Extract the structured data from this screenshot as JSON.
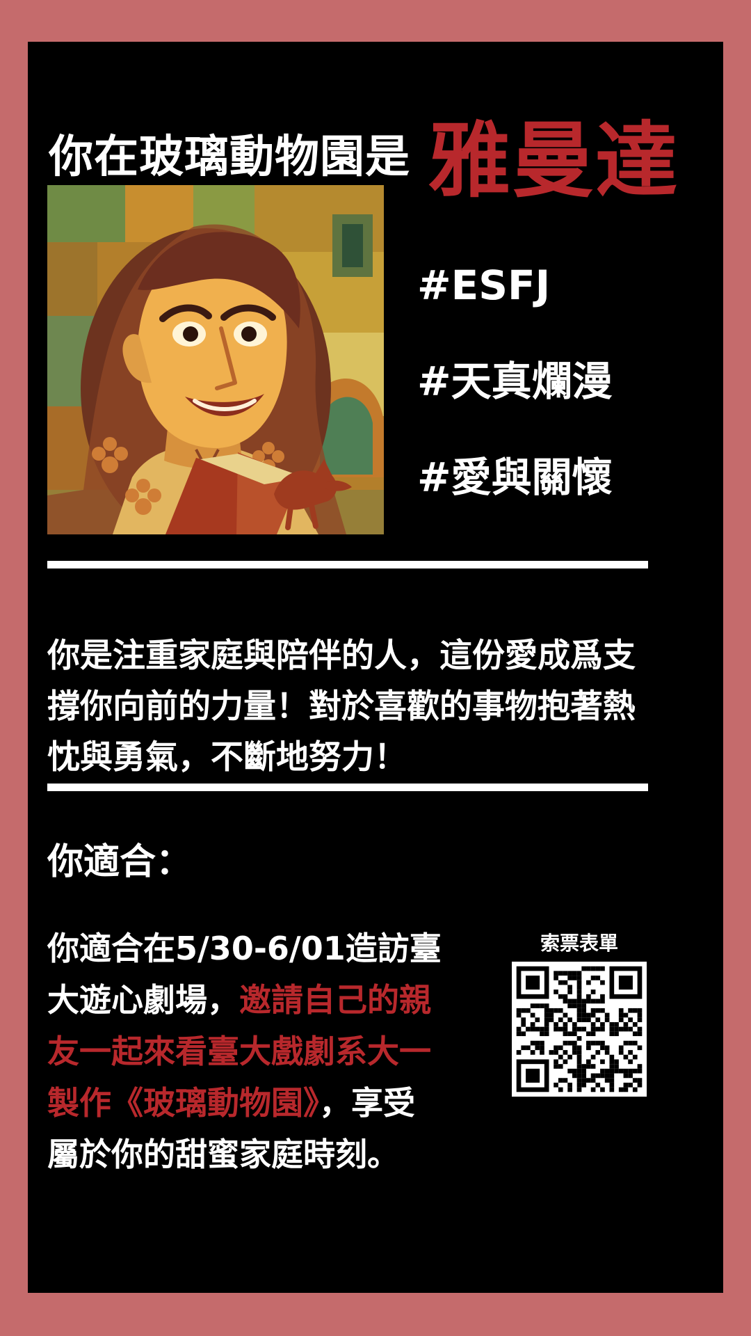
{
  "title": {
    "prefix": "你在玻璃動物園是",
    "name": "雅曼達"
  },
  "portrait": {
    "icon": "woman-reading-book-illustration-icon"
  },
  "tags": [
    "#ESFJ",
    "#天真爛漫",
    "#愛與關懷"
  ],
  "description": "你是注重家庭與陪伴的人，這份愛成爲支撐你向前的力量！對於喜歡的事物抱著熱忱與勇氣，不斷地努力！",
  "suitable": {
    "heading": "你適合：",
    "text_before": "你適合在5/30-6/01造訪臺大遊心劇場，",
    "highlight": "邀請自己的親友一起來看臺大戲劇系大一製作《玻璃動物園》",
    "text_after": "，享受屬於你的甜蜜家庭時刻。"
  },
  "qr": {
    "label": "索票表單",
    "icon": "qr-code-icon"
  },
  "colors": {
    "frame": "#c56b6c",
    "background": "#000000",
    "accent": "#b8282c",
    "text": "#ffffff"
  }
}
